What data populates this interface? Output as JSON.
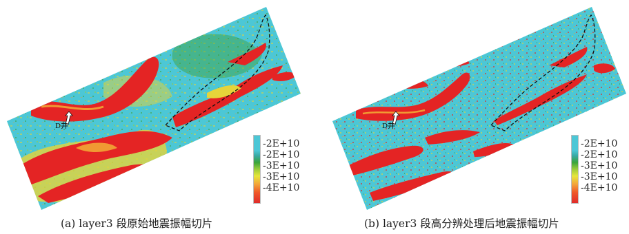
{
  "colors": {
    "background": "#4cc7d6",
    "yellow": "#e6d43a",
    "green": "#3f9f3a",
    "orange": "#f09a33",
    "red": "#e42424"
  },
  "panels": [
    {
      "well_label": "D井",
      "legend": [
        "-2E+10",
        "-2E+10",
        "-3E+10",
        "-3E+10",
        "-4E+10"
      ],
      "caption": "(a) layer3 段原始地震振幅切片"
    },
    {
      "well_label": "D井",
      "legend": [
        "-2E+10",
        "-2E+10",
        "-3E+10",
        "-3E+10",
        "-4E+10"
      ],
      "caption": "(b) layer3 段高分辨处理后地震振幅切片"
    }
  ]
}
